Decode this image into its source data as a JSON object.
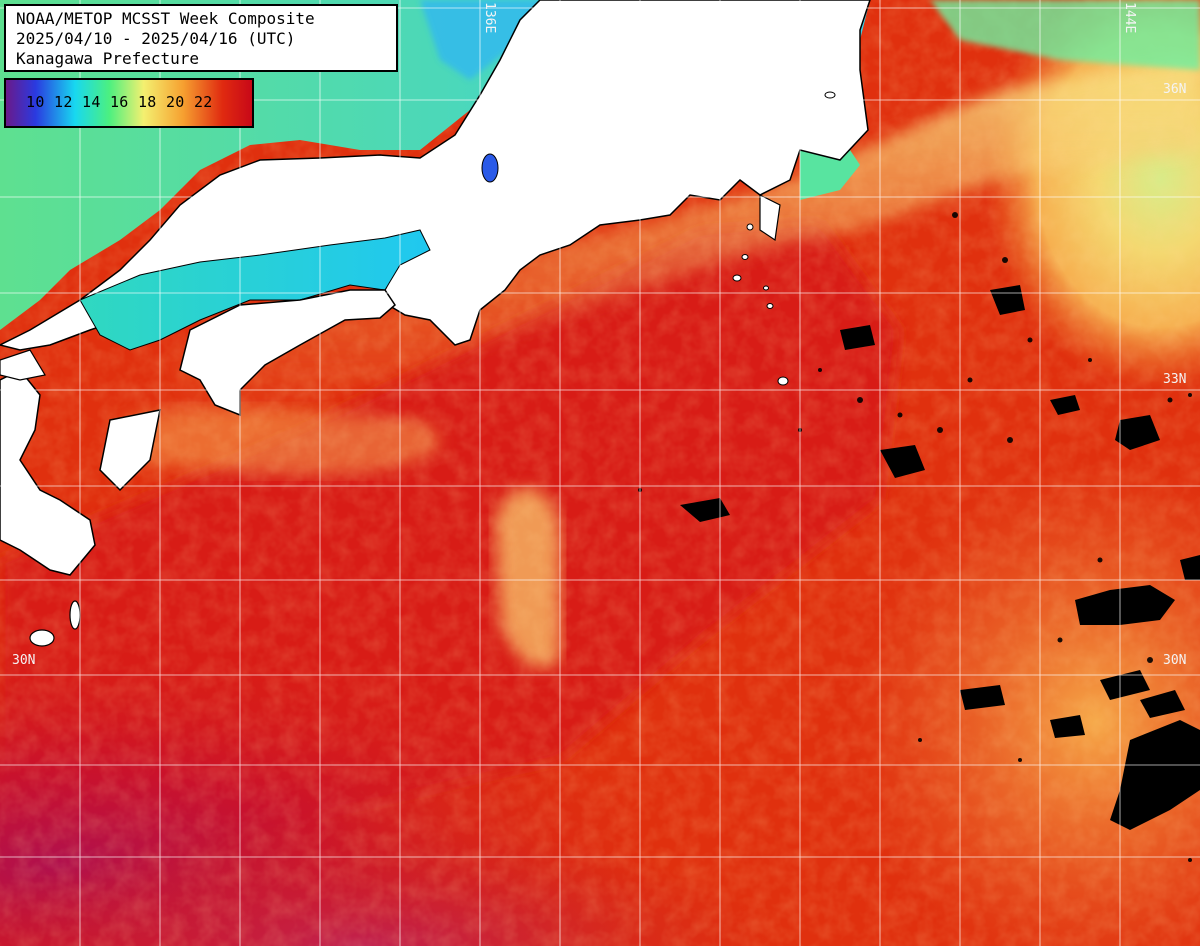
{
  "title": {
    "line1": "NOAA/METOP MCSST Week Composite",
    "line2": "2025/04/10 - 2025/04/16 (UTC)",
    "line3": "Kanagawa Prefecture"
  },
  "legend": {
    "labels": "10 12 14 16 18 20 22",
    "ticks": [
      "10",
      "12",
      "14",
      "16",
      "18",
      "20",
      "22"
    ],
    "gradient_colors": [
      "#6a1a8a",
      "#1e4fe0",
      "#18d8f0",
      "#4cf080",
      "#f4f070",
      "#f6a030",
      "#e02a10",
      "#c80818"
    ]
  },
  "grid_labels": {
    "lon_136": "136E",
    "lon_144": "144E",
    "lat_36_right": "36N",
    "lat_33_right": "33N",
    "lat_30_left": "30N",
    "lat_30_right": "30N"
  },
  "colors": {
    "land": "#ffffff",
    "cloud_mask": "#000000",
    "grid_line": "#ffffff",
    "sst_warm": "#e0260c",
    "sst_hot": "#c81426",
    "sst_purple": "#b01c5a",
    "sst_cool": "#f7c060",
    "sst_cold": "#5ce0a0"
  }
}
